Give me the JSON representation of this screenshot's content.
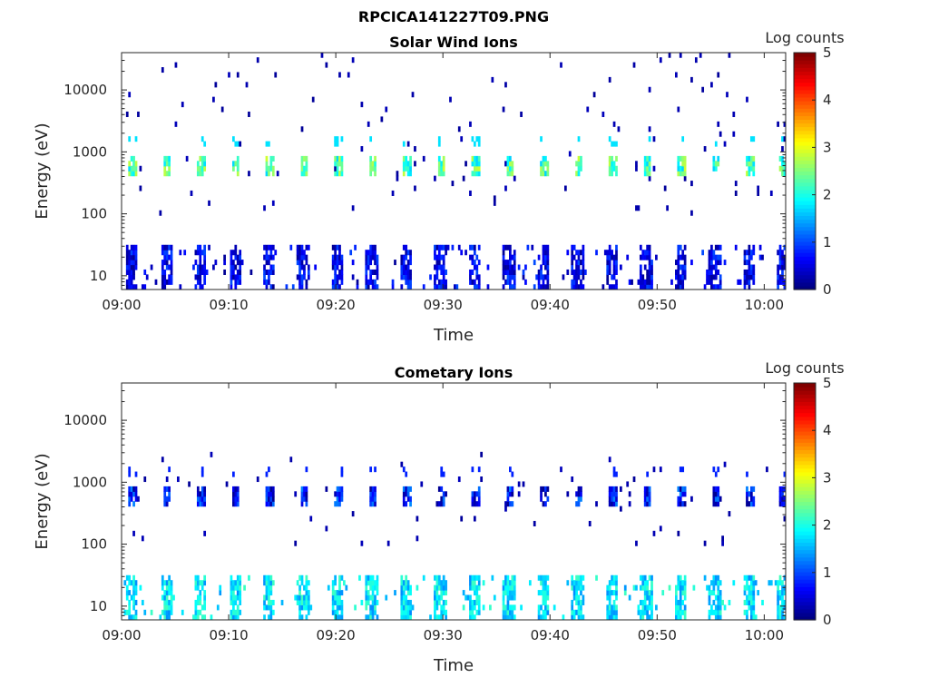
{
  "figure": {
    "title": "RPCICA141227T09.PNG"
  },
  "chart_data": [
    {
      "type": "heatmap",
      "title": "Solar Wind Ions",
      "xlabel": "Time",
      "ylabel": "Energy (eV)",
      "x_ticks": [
        "09:00",
        "09:10",
        "09:20",
        "09:30",
        "09:40",
        "09:50",
        "10:00"
      ],
      "y_ticks": [
        "10",
        "100",
        "1000",
        "10000"
      ],
      "y_scale": "log",
      "ylim": [
        6,
        40000
      ],
      "colorbar": {
        "label": "Log counts",
        "ticks": [
          "0",
          "1",
          "2",
          "3",
          "4",
          "5"
        ],
        "range": [
          0,
          5
        ],
        "colormap": "jet"
      },
      "pattern": {
        "cycle_period_min": 3.2,
        "bands": [
          {
            "name": "solar wind peak",
            "energy_eV": 600,
            "log_counts": 2.9
          },
          {
            "name": "low-energy bursts",
            "energy_eV": 15,
            "log_counts": 1.0
          },
          {
            "name": "sparse background",
            "energy_eV_range": [
              100,
              40000
            ],
            "log_counts": 0.3
          }
        ]
      }
    },
    {
      "type": "heatmap",
      "title": "Cometary Ions",
      "xlabel": "Time",
      "ylabel": "Energy (eV)",
      "x_ticks": [
        "09:00",
        "09:10",
        "09:20",
        "09:30",
        "09:40",
        "09:50",
        "10:00"
      ],
      "y_ticks": [
        "10",
        "100",
        "1000",
        "10000"
      ],
      "y_scale": "log",
      "ylim": [
        6,
        40000
      ],
      "colorbar": {
        "label": "Log counts",
        "ticks": [
          "0",
          "1",
          "2",
          "3",
          "4",
          "5"
        ],
        "range": [
          0,
          5
        ],
        "colormap": "jet"
      },
      "pattern": {
        "cycle_period_min": 3.2,
        "bands": [
          {
            "name": "mid-energy band",
            "energy_eV": 600,
            "log_counts": 1.3
          },
          {
            "name": "low-energy cometary",
            "energy_eV": 14,
            "log_counts": 2.2
          },
          {
            "name": "sparse background",
            "energy_eV_range": [
              100,
              3000
            ],
            "log_counts": 0.3
          }
        ]
      }
    }
  ]
}
